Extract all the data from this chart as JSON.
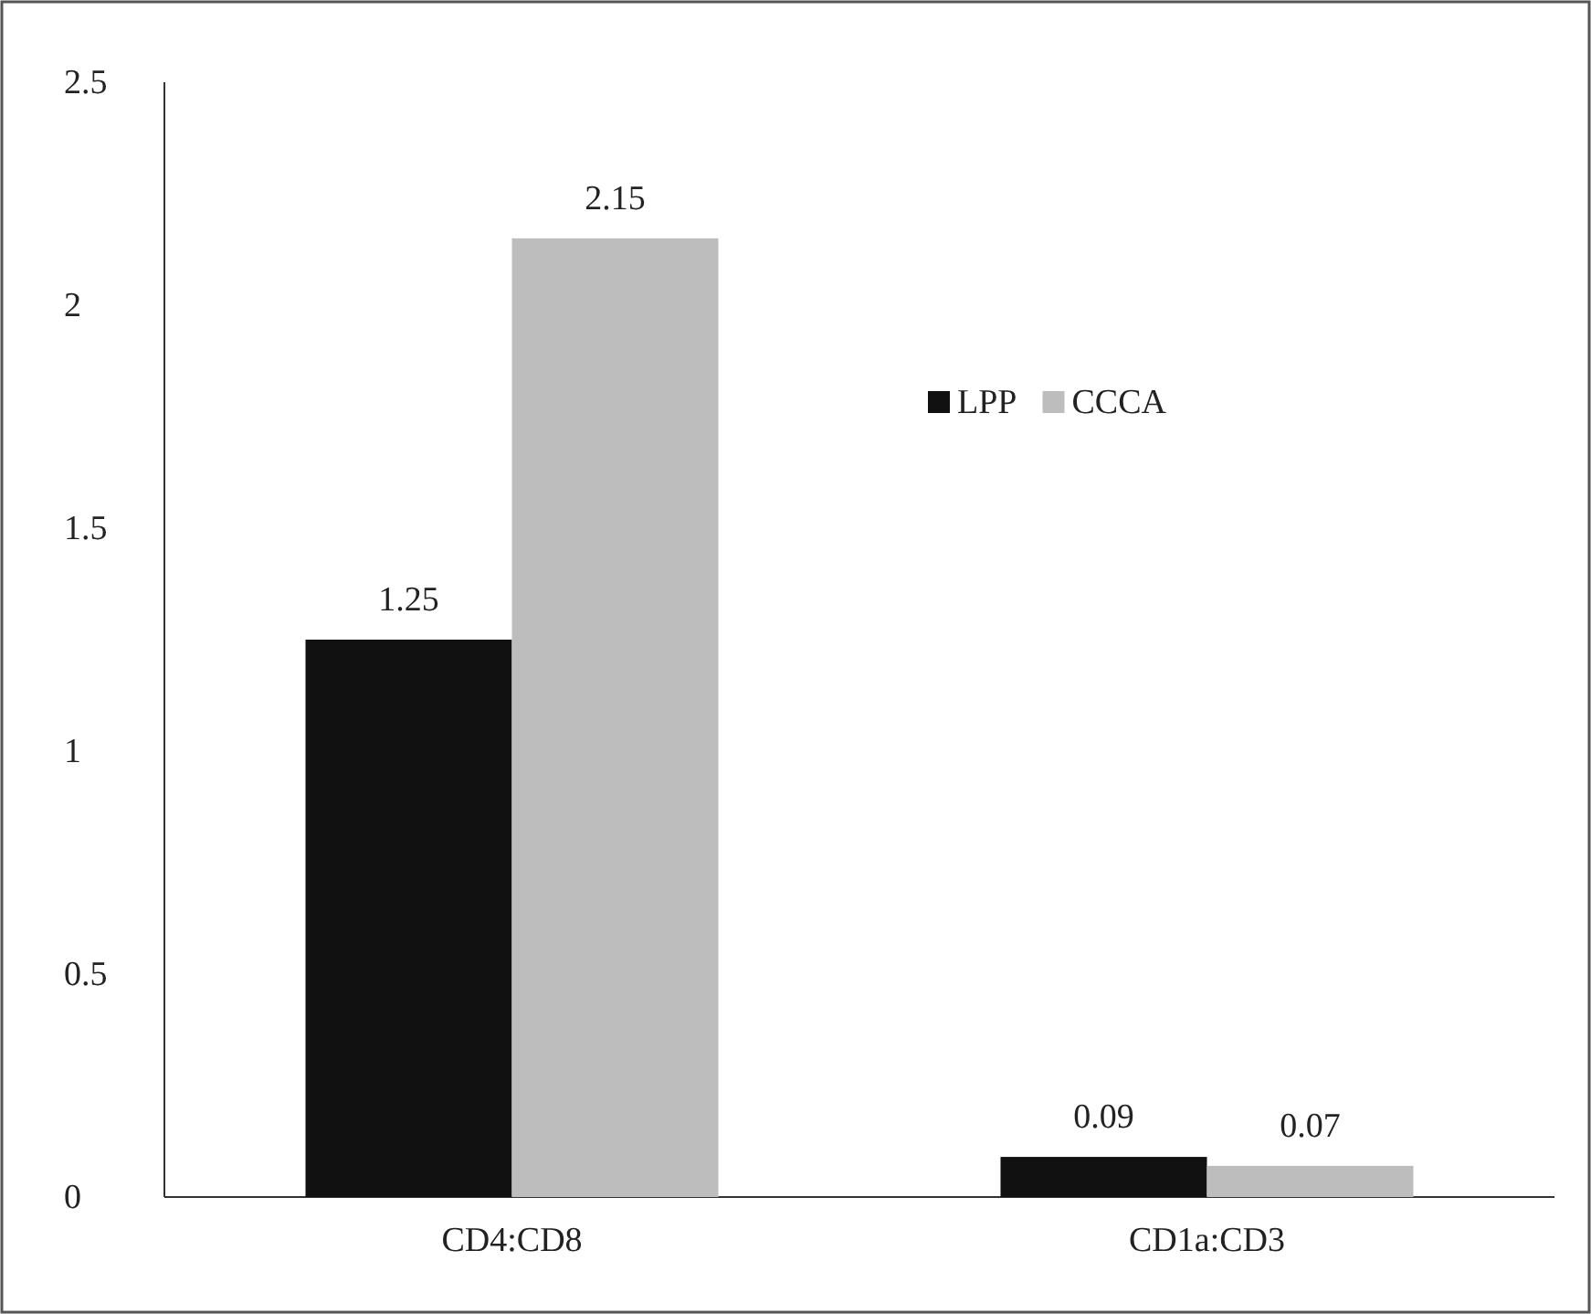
{
  "chart_data": {
    "type": "bar",
    "categories": [
      "CD4:CD8",
      "CD1a:CD3"
    ],
    "series": [
      {
        "name": "LPP",
        "color": "#111111",
        "values": [
          1.25,
          0.09
        ]
      },
      {
        "name": "CCCA",
        "color": "#bdbdbd",
        "values": [
          2.15,
          0.07
        ]
      }
    ],
    "ylim": [
      0,
      2.5
    ],
    "yticks": [
      0,
      0.5,
      1,
      1.5,
      2,
      2.5
    ],
    "data_labels": true,
    "legend": "right",
    "grid": false
  }
}
